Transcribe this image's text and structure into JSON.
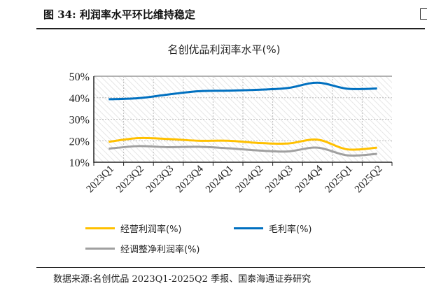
{
  "figure_title": "图 34:  利润率水平环比维持稳定",
  "source": "数据来源:名创优品 2023Q1-2025Q2 季报、国泰海通证券研究",
  "chart_data": {
    "type": "line",
    "title": "名创优品利润率水平(%)",
    "categories": [
      "2023Q1",
      "2023Q2",
      "2023Q3",
      "2023Q4",
      "2024Q1",
      "2024Q2",
      "2024Q3",
      "2024Q4",
      "2025Q1",
      "2025Q2"
    ],
    "ylim": [
      10,
      50
    ],
    "yticks": [
      "10%",
      "20%",
      "30%",
      "40%",
      "50%"
    ],
    "ytick_values": [
      10,
      20,
      30,
      40,
      50
    ],
    "grid": true,
    "legend_position": "bottom",
    "series": [
      {
        "name": "经营利润率(%)",
        "color": "#FFC000",
        "values": [
          19.5,
          21.2,
          20.8,
          20.0,
          20.0,
          19.0,
          18.7,
          20.5,
          16.0,
          16.8
        ]
      },
      {
        "name": "毛利率(%)",
        "color": "#0070C0",
        "values": [
          39.3,
          39.8,
          41.5,
          43.0,
          43.3,
          43.7,
          44.5,
          47.0,
          44.2,
          44.3
        ]
      },
      {
        "name": "经调整净利润率(%)",
        "color": "#A0A0A0",
        "values": [
          16.3,
          17.5,
          17.0,
          17.2,
          16.5,
          15.5,
          15.0,
          16.8,
          13.2,
          13.9
        ]
      }
    ]
  }
}
